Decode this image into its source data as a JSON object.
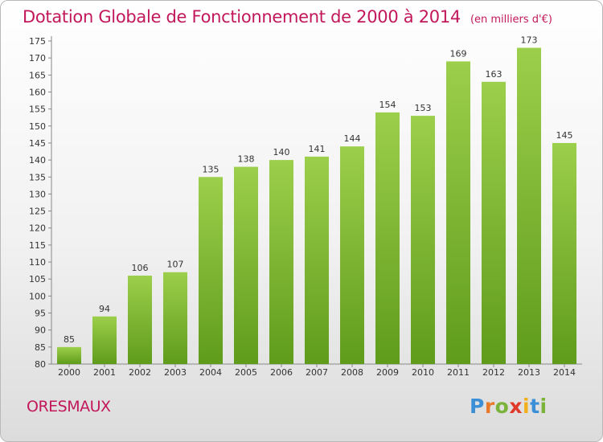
{
  "title": "Dotation Globale de Fonctionnement de 2000 à 2014",
  "subtitle": "(en milliers d'€)",
  "commune": "ORESMAUX",
  "logo": {
    "letters": [
      "P",
      "r",
      "o",
      "x",
      "i",
      "t",
      "i"
    ],
    "colors": [
      "#3a8fd6",
      "#e8792a",
      "#7bb33a",
      "#e0392b",
      "#f2b01e",
      "#3a8fd6",
      "#7bb33a"
    ]
  },
  "colors": {
    "bar_top": "#9ccf4b",
    "bar_bottom": "#5f9c1b",
    "accent": "#c2185b"
  },
  "chart_data": {
    "type": "bar",
    "categories": [
      "2000",
      "2001",
      "2002",
      "2003",
      "2004",
      "2005",
      "2006",
      "2007",
      "2008",
      "2009",
      "2010",
      "2011",
      "2012",
      "2013",
      "2014"
    ],
    "values": [
      85,
      94,
      106,
      107,
      135,
      138,
      140,
      141,
      144,
      154,
      153,
      169,
      163,
      173,
      145
    ],
    "ylim": [
      80,
      175
    ],
    "yticks": [
      80,
      85,
      90,
      95,
      100,
      105,
      110,
      115,
      120,
      125,
      130,
      135,
      140,
      145,
      150,
      155,
      160,
      165,
      170,
      175
    ],
    "grid": false
  }
}
